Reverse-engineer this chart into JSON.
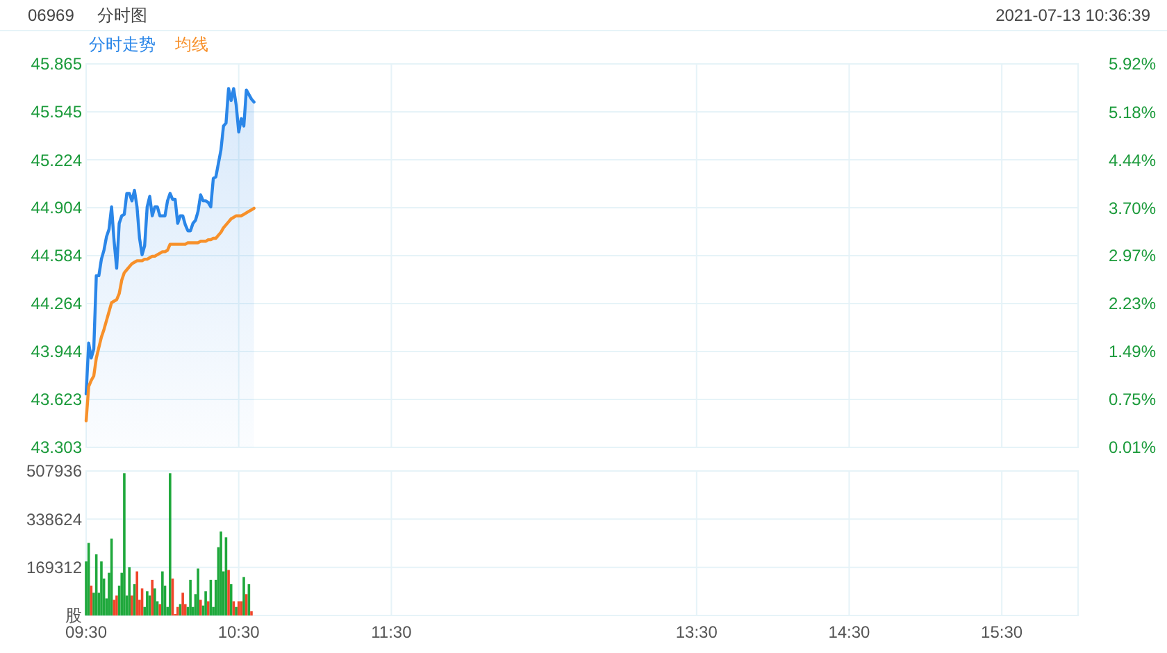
{
  "chart_data": [
    {
      "type": "area",
      "title": "06969",
      "subtitle": "分时图",
      "annotations": [
        "2021-07-13 10:36:39"
      ],
      "legend": "top left",
      "grid": true,
      "tick_labels": "y",
      "x": [
        9.5,
        9.5167,
        9.5333,
        9.55,
        9.5667,
        9.5833,
        9.6,
        9.6167,
        9.6333,
        9.65,
        9.6667,
        9.6833,
        9.7,
        9.7167,
        9.7333,
        9.75,
        9.7667,
        9.7833,
        9.8,
        9.8167,
        9.8333,
        9.85,
        9.8667,
        9.8833,
        9.9,
        9.9167,
        9.9333,
        9.95,
        9.9667,
        9.9833,
        10,
        10.0167,
        10.0333,
        10.05,
        10.0667,
        10.0833,
        10.1,
        10.1167,
        10.1333,
        10.15,
        10.1667,
        10.1833,
        10.2,
        10.2167,
        10.2333,
        10.25,
        10.2667,
        10.2833,
        10.3,
        10.3167,
        10.3333,
        10.35,
        10.3667,
        10.3833,
        10.4,
        10.4167,
        10.4333,
        10.45,
        10.4667,
        10.4833,
        10.5,
        10.5167,
        10.5333,
        10.55,
        10.5667,
        10.5833,
        10.6
      ],
      "xlim": [
        9.5,
        16
      ],
      "xticks": [
        {
          "value": 9.5,
          "label": null
        },
        {
          "value": 10.5,
          "label": null
        },
        {
          "value": 11.5,
          "label": null
        },
        {
          "value": 13.5,
          "label": null
        },
        {
          "value": 14.5,
          "label": null
        },
        {
          "value": 15.5,
          "label": null
        }
      ],
      "ylim": [
        43.303,
        45.865
      ],
      "yticks": [
        43.303,
        43.623,
        43.944,
        44.264,
        44.584,
        44.904,
        45.224,
        45.545,
        45.865
      ],
      "y2lim": [
        0.01,
        5.92
      ],
      "y2ticks": [
        {
          "value": 0.01,
          "label": "0.01%"
        },
        {
          "value": 0.75,
          "label": "0.75%"
        },
        {
          "value": 1.49,
          "label": "1.49%"
        },
        {
          "value": 2.23,
          "label": "2.23%"
        },
        {
          "value": 2.97,
          "label": "2.97%"
        },
        {
          "value": 3.7,
          "label": "3.70%"
        },
        {
          "value": 4.44,
          "label": "4.44%"
        },
        {
          "value": 5.18,
          "label": "5.18%"
        },
        {
          "value": 5.92,
          "label": "5.92%"
        }
      ],
      "series": [
        {
          "name": "分时走势",
          "color": "#2a86e8",
          "values": [
            43.66,
            44.0,
            43.9,
            43.96,
            44.45,
            44.45,
            44.56,
            44.62,
            44.71,
            44.76,
            44.91,
            44.68,
            44.5,
            44.8,
            44.85,
            44.86,
            45.0,
            45.0,
            44.95,
            45.02,
            44.91,
            44.7,
            44.59,
            44.65,
            44.91,
            44.98,
            44.85,
            44.91,
            44.91,
            44.85,
            44.85,
            44.85,
            44.95,
            45.0,
            44.96,
            44.96,
            44.8,
            44.85,
            44.85,
            44.79,
            44.75,
            44.75,
            44.8,
            44.82,
            44.88,
            44.99,
            44.95,
            44.95,
            44.94,
            44.91,
            45.1,
            45.11,
            45.2,
            45.29,
            45.45,
            45.47,
            45.7,
            45.62,
            45.7,
            45.59,
            45.41,
            45.5,
            45.45,
            45.69,
            45.66,
            45.63,
            45.61
          ]
        },
        {
          "name": "均线",
          "type": "line",
          "color": "#f7902a",
          "values": [
            43.48,
            43.71,
            43.75,
            43.78,
            43.9,
            43.97,
            44.04,
            44.09,
            44.15,
            44.21,
            44.27,
            44.28,
            44.29,
            44.33,
            44.42,
            44.47,
            44.49,
            44.51,
            44.53,
            44.54,
            44.55,
            44.55,
            44.55,
            44.56,
            44.56,
            44.57,
            44.58,
            44.58,
            44.59,
            44.6,
            44.61,
            44.61,
            44.62,
            44.66,
            44.66,
            44.66,
            44.66,
            44.66,
            44.66,
            44.66,
            44.67,
            44.67,
            44.67,
            44.67,
            44.67,
            44.68,
            44.68,
            44.68,
            44.69,
            44.69,
            44.7,
            44.7,
            44.72,
            44.74,
            44.77,
            44.79,
            44.81,
            44.83,
            44.84,
            44.85,
            44.85,
            44.85,
            44.86,
            44.87,
            44.88,
            44.89,
            44.9
          ]
        }
      ]
    },
    {
      "type": "bar",
      "grid": true,
      "x": [
        9.5,
        9.5167,
        9.5333,
        9.55,
        9.5667,
        9.5833,
        9.6,
        9.6167,
        9.6333,
        9.65,
        9.6667,
        9.6833,
        9.7,
        9.7167,
        9.7333,
        9.75,
        9.7667,
        9.7833,
        9.8,
        9.8167,
        9.8333,
        9.85,
        9.8667,
        9.8833,
        9.9,
        9.9167,
        9.9333,
        9.95,
        9.9667,
        9.9833,
        10,
        10.0167,
        10.0333,
        10.05,
        10.0667,
        10.0833,
        10.1,
        10.1167,
        10.1333,
        10.15,
        10.1667,
        10.1833,
        10.2,
        10.2167,
        10.2333,
        10.25,
        10.2667,
        10.2833,
        10.3,
        10.3167,
        10.3333,
        10.35,
        10.3667,
        10.3833,
        10.4,
        10.4167,
        10.4333,
        10.45,
        10.4667,
        10.4833,
        10.5,
        10.5167,
        10.5333,
        10.55,
        10.5667,
        10.5833
      ],
      "xlim": [
        9.5,
        16
      ],
      "xticks": [
        {
          "value": 9.5,
          "label": "09:30"
        },
        {
          "value": 10.5,
          "label": "10:30"
        },
        {
          "value": 11.5,
          "label": "11:30"
        },
        {
          "value": 13.5,
          "label": "13:30"
        },
        {
          "value": 14.5,
          "label": "14:30"
        },
        {
          "value": 15.5,
          "label": "15:30"
        }
      ],
      "ylim": [
        0,
        507936
      ],
      "yticks": [
        {
          "value": 0,
          "label": "股"
        },
        169312,
        338624,
        507936
      ],
      "values": [
        190000,
        255000,
        105000,
        80000,
        215000,
        80000,
        190000,
        130000,
        60000,
        150000,
        270000,
        55000,
        70000,
        105000,
        150000,
        500000,
        70000,
        170000,
        70000,
        110000,
        155000,
        55000,
        95000,
        30000,
        85000,
        70000,
        125000,
        95000,
        50000,
        40000,
        155000,
        105000,
        30000,
        500000,
        130000,
        5000,
        30000,
        40000,
        80000,
        40000,
        30000,
        125000,
        30000,
        75000,
        165000,
        55000,
        35000,
        85000,
        50000,
        125000,
        30000,
        125000,
        240000,
        295000,
        155000,
        275000,
        160000,
        110000,
        50000,
        30000,
        50000,
        50000,
        135000,
        75000,
        110000,
        15000
      ],
      "colors": [
        "#1fa83c",
        "#1fa83c",
        "#f0452a",
        "#1fa83c",
        "#1fa83c",
        "#1fa83c",
        "#1fa83c",
        "#1fa83c",
        "#1fa83c",
        "#1fa83c",
        "#1fa83c",
        "#f0452a",
        "#f0452a",
        "#1fa83c",
        "#1fa83c",
        "#1fa83c",
        "#1fa83c",
        "#1fa83c",
        "#f0452a",
        "#1fa83c",
        "#f0452a",
        "#f0452a",
        "#f0452a",
        "#1fa83c",
        "#1fa83c",
        "#1fa83c",
        "#f0452a",
        "#1fa83c",
        "#1fa83c",
        "#f0452a",
        "#1fa83c",
        "#1fa83c",
        "#1fa83c",
        "#1fa83c",
        "#f0452a",
        "#f0452a",
        "#f0452a",
        "#1fa83c",
        "#f0452a",
        "#f0452a",
        "#1fa83c",
        "#1fa83c",
        "#1fa83c",
        "#1fa83c",
        "#1fa83c",
        "#f0452a",
        "#1fa83c",
        "#1fa83c",
        "#f0452a",
        "#1fa83c",
        "#1fa83c",
        "#1fa83c",
        "#1fa83c",
        "#1fa83c",
        "#1fa83c",
        "#1fa83c",
        "#f0452a",
        "#1fa83c",
        "#f0452a",
        "#1fa83c",
        "#f0452a",
        "#f0452a",
        "#1fa83c",
        "#f0452a",
        "#1fa83c",
        "#f0452a"
      ]
    }
  ]
}
